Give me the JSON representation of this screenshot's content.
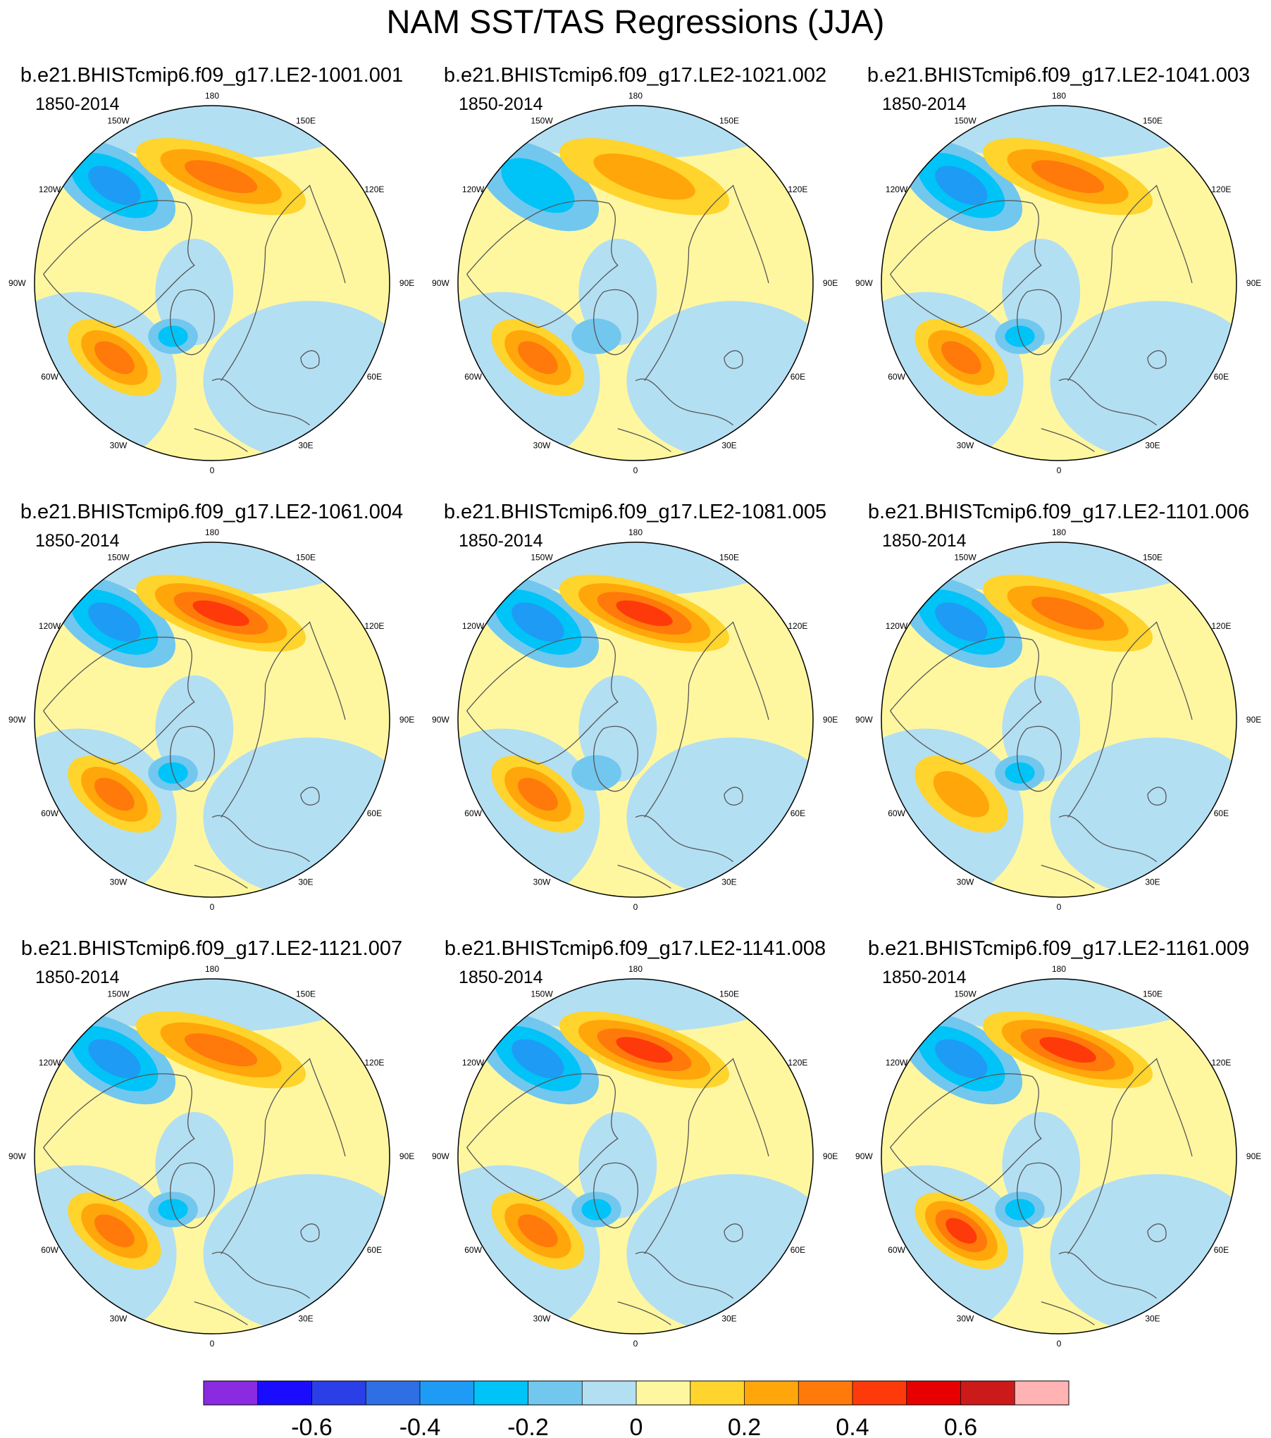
{
  "title": "NAM SST/TAS Regressions (JJA)",
  "palette": {
    "levels": [
      -0.7,
      -0.6,
      -0.5,
      -0.4,
      -0.3,
      -0.2,
      -0.1,
      0,
      0.1,
      0.2,
      0.3,
      0.4,
      0.5,
      0.6,
      0.7
    ],
    "colors": [
      "#8a2be2",
      "#1a0dff",
      "#2a3fe8",
      "#2f6fe6",
      "#1e9bf5",
      "#00c3f7",
      "#72c7ee",
      "#b3dff3",
      "#fff7a0",
      "#ffd42c",
      "#ffa60a",
      "#ff7a0a",
      "#ff3a0a",
      "#e80000",
      "#cc1a1a",
      "#ffb3b3"
    ],
    "tick_values": [
      -0.6,
      -0.4,
      -0.2,
      0,
      0.2,
      0.4,
      0.6
    ],
    "tick_labels": [
      "-0.6",
      "-0.4",
      "-0.2",
      "0",
      "0.2",
      "0.4",
      "0.6"
    ]
  },
  "map": {
    "projection": "north-polar-stereographic",
    "longitude_labels": [
      "180",
      "150E",
      "120E",
      "90E",
      "60E",
      "30E",
      "0",
      "30W",
      "60W",
      "90W",
      "120W",
      "150W"
    ]
  },
  "panels": [
    {
      "name": "b.e21.BHISTcmip6.f09_g17.LE2-1001.001",
      "period": "1850-2014",
      "pac_pos": 0.3,
      "pac_neg": -0.3,
      "atl_pos": 0.3,
      "atl_neg": -0.2
    },
    {
      "name": "b.e21.BHISTcmip6.f09_g17.LE2-1021.002",
      "period": "1850-2014",
      "pac_pos": 0.2,
      "pac_neg": -0.2,
      "atl_pos": 0.3,
      "atl_neg": -0.1
    },
    {
      "name": "b.e21.BHISTcmip6.f09_g17.LE2-1041.003",
      "period": "1850-2014",
      "pac_pos": 0.3,
      "pac_neg": -0.3,
      "atl_pos": 0.3,
      "atl_neg": -0.2
    },
    {
      "name": "b.e21.BHISTcmip6.f09_g17.LE2-1061.004",
      "period": "1850-2014",
      "pac_pos": 0.4,
      "pac_neg": -0.3,
      "atl_pos": 0.3,
      "atl_neg": -0.2
    },
    {
      "name": "b.e21.BHISTcmip6.f09_g17.LE2-1081.005",
      "period": "1850-2014",
      "pac_pos": 0.4,
      "pac_neg": -0.3,
      "atl_pos": 0.3,
      "atl_neg": -0.1
    },
    {
      "name": "b.e21.BHISTcmip6.f09_g17.LE2-1101.006",
      "period": "1850-2014",
      "pac_pos": 0.3,
      "pac_neg": -0.3,
      "atl_pos": 0.2,
      "atl_neg": -0.2
    },
    {
      "name": "b.e21.BHISTcmip6.f09_g17.LE2-1121.007",
      "period": "1850-2014",
      "pac_pos": 0.3,
      "pac_neg": -0.3,
      "atl_pos": 0.3,
      "atl_neg": -0.2
    },
    {
      "name": "b.e21.BHISTcmip6.f09_g17.LE2-1141.008",
      "period": "1850-2014",
      "pac_pos": 0.4,
      "pac_neg": -0.3,
      "atl_pos": 0.3,
      "atl_neg": -0.2
    },
    {
      "name": "b.e21.BHISTcmip6.f09_g17.LE2-1161.009",
      "period": "1850-2014",
      "pac_pos": 0.4,
      "pac_neg": -0.3,
      "atl_pos": 0.4,
      "atl_neg": -0.2
    }
  ]
}
